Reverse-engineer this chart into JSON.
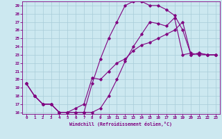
{
  "xlabel": "Windchill (Refroidissement éolien,°C)",
  "xlim": [
    -0.5,
    23.5
  ],
  "ylim": [
    15.8,
    29.5
  ],
  "yticks": [
    16,
    17,
    18,
    19,
    20,
    21,
    22,
    23,
    24,
    25,
    26,
    27,
    28,
    29
  ],
  "xticks": [
    0,
    1,
    2,
    3,
    4,
    5,
    6,
    7,
    8,
    9,
    10,
    11,
    12,
    13,
    14,
    15,
    16,
    17,
    18,
    19,
    20,
    21,
    22,
    23
  ],
  "bg_color": "#cce8f0",
  "line_color": "#800080",
  "grid_color": "#a8ccd8",
  "curve1_x": [
    0,
    1,
    2,
    3,
    4,
    5,
    6,
    7,
    8,
    9,
    10,
    11,
    12,
    13,
    14,
    15,
    16,
    17,
    18,
    19,
    20,
    21,
    22,
    23
  ],
  "curve1_y": [
    19.5,
    18.0,
    17.0,
    17.0,
    16.0,
    16.0,
    16.0,
    16.0,
    16.0,
    16.5,
    18.0,
    20.0,
    22.2,
    24.0,
    25.5,
    27.0,
    26.8,
    26.5,
    27.5,
    23.0,
    23.2,
    23.0,
    23.0,
    23.0
  ],
  "curve2_x": [
    0,
    1,
    2,
    3,
    4,
    5,
    6,
    7,
    8,
    9,
    10,
    11,
    12,
    13,
    14,
    15,
    16,
    17,
    18,
    19,
    20,
    21,
    22,
    23
  ],
  "curve2_y": [
    19.5,
    18.0,
    17.0,
    17.0,
    16.0,
    16.0,
    16.0,
    16.0,
    19.5,
    22.5,
    25.0,
    27.0,
    29.0,
    29.5,
    29.5,
    29.0,
    29.0,
    28.5,
    27.8,
    26.0,
    23.0,
    23.2,
    23.0,
    23.0
  ],
  "curve3_x": [
    0,
    1,
    2,
    3,
    4,
    5,
    6,
    7,
    8,
    9,
    10,
    11,
    12,
    13,
    14,
    15,
    16,
    17,
    18,
    19,
    20,
    21,
    22,
    23
  ],
  "curve3_y": [
    19.5,
    18.0,
    17.0,
    17.0,
    16.0,
    16.0,
    16.5,
    17.0,
    20.2,
    20.0,
    21.0,
    22.0,
    22.5,
    23.5,
    24.2,
    24.5,
    25.0,
    25.5,
    26.0,
    27.0,
    23.0,
    23.2,
    23.0,
    23.0
  ]
}
